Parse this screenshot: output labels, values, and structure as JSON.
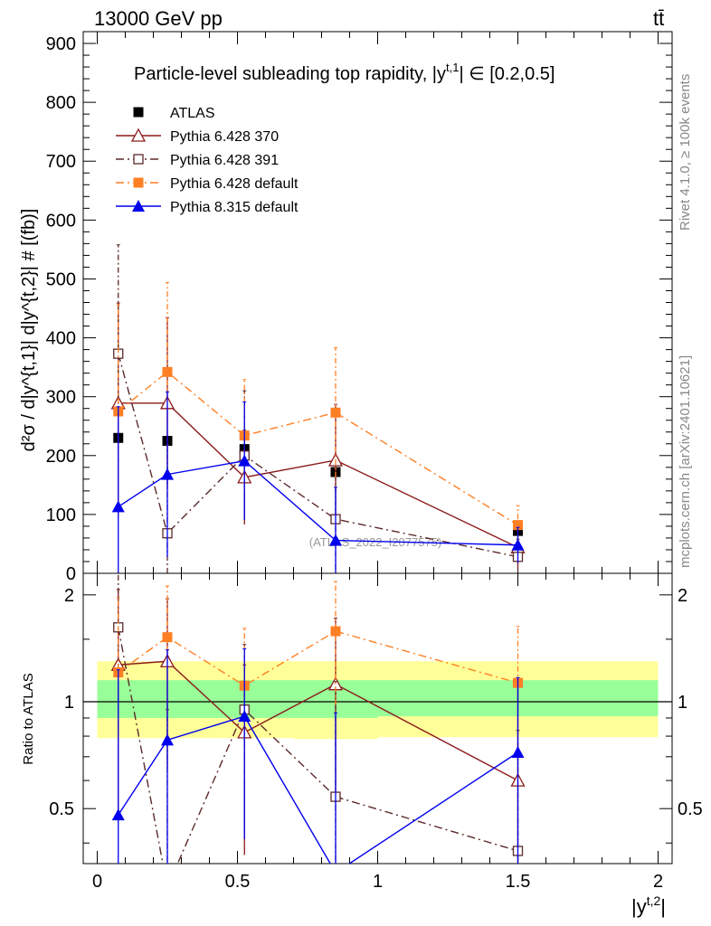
{
  "header": {
    "energy": "13000 GeV pp",
    "process": "tt̄"
  },
  "side_labels": {
    "rivet": "Rivet 4.1.0, ≥ 100k events",
    "source": "mcplots.cern.ch [arXiv:2401.10621]"
  },
  "watermark": "(ATLAS_2022_I2077575)",
  "chart_data": [
    {
      "type": "scatter",
      "title": "Particle-level subleading top rapidity, |y^{t,1}| ∈ [0.2,0.5]",
      "title_main": "Particle-level subleading top rapidity, |y",
      "title_sup": "t,1",
      "title_tail": "| ∈ [0.2,0.5]",
      "ylabel": "d²σ / d|y^{t,1}| d|y^{t,2}| # [(fb)]",
      "xlabel": "|y^{t,2}|",
      "xlim": [
        -0.05,
        2.05
      ],
      "ylim": [
        0,
        920
      ],
      "x_ticks": [
        0,
        0.5,
        1,
        1.5,
        2
      ],
      "x_tick_labels": [
        "0",
        "0.5",
        "1",
        "1.5",
        "2"
      ],
      "y_ticks": [
        0,
        100,
        200,
        300,
        400,
        500,
        600,
        700,
        800,
        900
      ],
      "y_tick_labels": [
        "0",
        "100",
        "200",
        "300",
        "400",
        "500",
        "600",
        "700",
        "800",
        "900"
      ],
      "x": [
        0.075,
        0.25,
        0.525,
        0.85,
        1.5
      ],
      "series": [
        {
          "name": "ATLAS",
          "color": "#000000",
          "marker": "square-filled",
          "line": "none",
          "values": [
            230,
            225,
            211,
            172,
            72
          ],
          "err": [
            0,
            0,
            0,
            0,
            0
          ]
        },
        {
          "name": "Pythia 6.428 370",
          "color": "#8b1a1a",
          "marker": "triangle-open",
          "line": "solid",
          "values": [
            289,
            289,
            163,
            192,
            44
          ],
          "err": [
            170,
            145,
            80,
            95,
            35
          ]
        },
        {
          "name": "Pythia 6.428 391",
          "color": "#5c2a2a",
          "marker": "square-open",
          "line": "dashdot",
          "values": [
            373,
            68,
            200,
            92,
            28
          ],
          "err": [
            185,
            150,
            110,
            85,
            30
          ]
        },
        {
          "name": "Pythia 6.428 default",
          "color": "#ff7f24",
          "marker": "square-filled",
          "line": "dashdot",
          "values": [
            275,
            342,
            234,
            273,
            82
          ],
          "err": [
            180,
            152,
            95,
            110,
            33
          ]
        },
        {
          "name": "Pythia 8.315 default",
          "color": "#0000ee",
          "marker": "triangle-filled",
          "line": "solid",
          "values": [
            113,
            168,
            191,
            56,
            48
          ],
          "err": [
            170,
            140,
            100,
            90,
            30
          ]
        }
      ]
    },
    {
      "type": "line",
      "title": "",
      "ylabel": "Ratio to ATLAS",
      "xlabel": "|y^{t,2}|",
      "xlim": [
        -0.05,
        2.05
      ],
      "ylim": [
        0.35,
        2.3
      ],
      "y_ticks": [
        0.5,
        1,
        2
      ],
      "y_tick_labels": [
        "0.5",
        "1",
        "2"
      ],
      "x": [
        0.075,
        0.25,
        0.525,
        0.85,
        1.5
      ],
      "bands": {
        "yellow": {
          "color": "#ffff99",
          "low": [
            0.79,
            0.79,
            0.79,
            0.785,
            0.795
          ],
          "high": [
            1.3,
            1.3,
            1.3,
            1.3,
            1.3
          ]
        },
        "green": {
          "color": "#99ff99",
          "low": [
            0.9,
            0.9,
            0.9,
            0.9,
            0.91
          ],
          "high": [
            1.15,
            1.15,
            1.15,
            1.15,
            1.15
          ]
        }
      },
      "series": [
        {
          "name": "Pythia 6.428 370",
          "values": [
            1.27,
            1.3,
            0.82,
            1.12,
            0.6
          ],
          "err": [
            0.8,
            0.65,
            0.45,
            0.6,
            0.5
          ]
        },
        {
          "name": "Pythia 6.428 391",
          "values": [
            1.62,
            0.3,
            0.95,
            0.54,
            0.38
          ],
          "err": [
            0.8,
            0.65,
            0.5,
            0.6,
            0.45
          ]
        },
        {
          "name": "Pythia 6.428 default",
          "values": [
            1.21,
            1.52,
            1.11,
            1.58,
            1.13
          ],
          "err": [
            0.75,
            0.6,
            0.5,
            0.6,
            0.5
          ]
        },
        {
          "name": "Pythia 8.315 default",
          "values": [
            0.48,
            0.78,
            0.91,
            0.33,
            0.72
          ],
          "err": [
            0.75,
            0.62,
            0.5,
            0.6,
            0.45
          ]
        }
      ]
    }
  ]
}
